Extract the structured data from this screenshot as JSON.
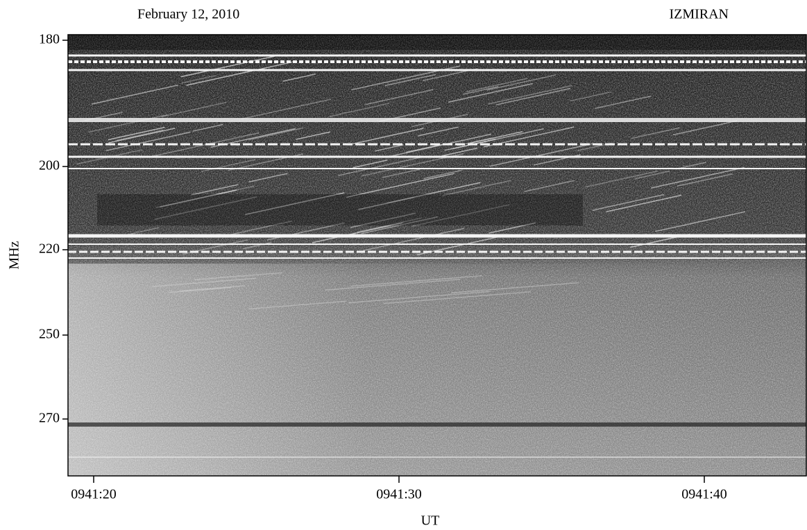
{
  "chart_data": {
    "type": "spectrogram",
    "annotations": [
      "February 12, 2010",
      "IZMIRAN"
    ],
    "ylabel": "MHz",
    "xlabel": "UT",
    "yticks": [
      180,
      200,
      220,
      250,
      270
    ],
    "xticks": [
      "0941:20",
      "0941:30",
      "0941:40"
    ]
  }
}
